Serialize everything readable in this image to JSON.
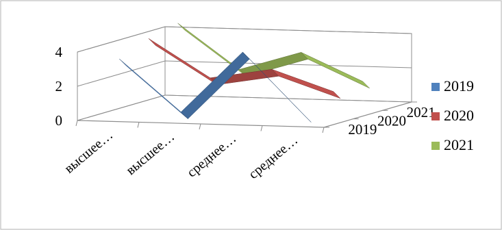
{
  "chart_data": {
    "type": "line",
    "style": "3d-line",
    "categories": [
      "высшее…",
      "высшее…",
      "среднее…",
      "среднее…"
    ],
    "series": [
      {
        "name": "2019",
        "color": "#4F81BD",
        "values": [
          3.2,
          0.2,
          3.8,
          0.2
        ]
      },
      {
        "name": "2020",
        "color": "#C0504D",
        "values": [
          3.9,
          1.7,
          2.3,
          1.1
        ]
      },
      {
        "name": "2021",
        "color": "#9BBB59",
        "values": [
          4.3,
          1.7,
          2.8,
          1.2
        ]
      }
    ],
    "yticks": [
      0,
      2,
      4
    ],
    "ylim": [
      0,
      4
    ],
    "depth_labels": [
      "2019",
      "2020",
      "2021"
    ],
    "grid": true,
    "legend_position": "right",
    "title": "",
    "xlabel": "",
    "ylabel": ""
  }
}
